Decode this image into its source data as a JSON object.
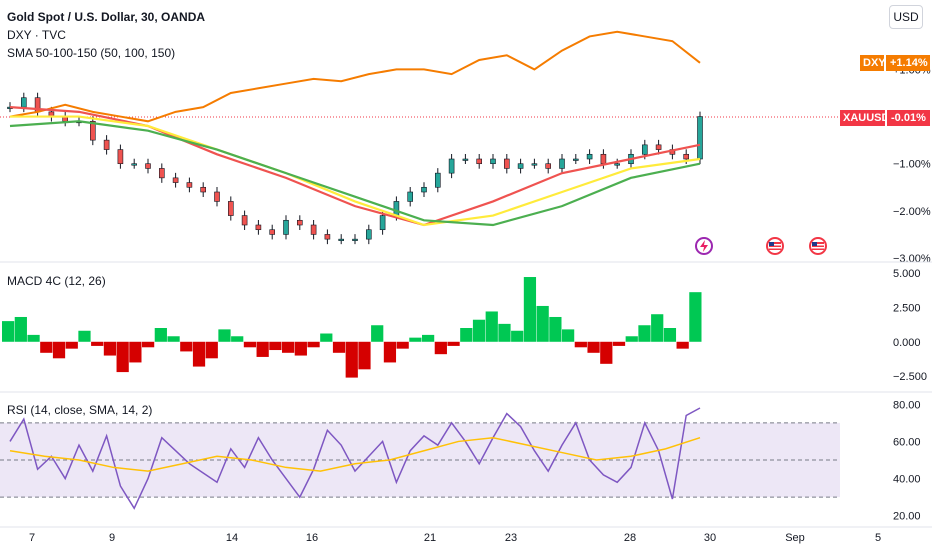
{
  "header": {
    "symbol_title": "Gold Spot / U.S. Dollar, 30, OANDA",
    "compare_label": "DXY · TVC",
    "sma_label": "SMA 50-100-150 (50, 100, 150)",
    "currency_button": "USD"
  },
  "badges": {
    "dxy_name": "DXY",
    "dxy_change": "+1.14%",
    "xau_name": "XAUUSD",
    "xau_change": "-0.01%"
  },
  "colors": {
    "xau_up": "#26a69a",
    "xau_down": "#ef5350",
    "dxy": "#f57c00",
    "sma50": "#ef5350",
    "sma100": "#ffeb3b",
    "sma150": "#4caf50",
    "macd_up": "#00c853",
    "macd_down": "#d50000",
    "rsi_line": "#7e57c2",
    "rsi_sma": "#ffc107",
    "rsi_band": "#ede7f6",
    "badge_orange": "#f57c00",
    "badge_red": "#f23645"
  },
  "event_icons": [
    "lightning-icon",
    "us-flag-icon",
    "us-flag-icon"
  ],
  "chart_data": [
    {
      "type": "line",
      "panel": "price",
      "title": "Gold Spot / U.S. Dollar, 30, OANDA",
      "y_axis_labels": [
        "+1.00%",
        "−1.00%",
        "−2.00%",
        "−3.00%"
      ],
      "ylim_percent": [
        -3.0,
        1.2
      ],
      "x_tick_labels": [
        "7",
        "9",
        "14",
        "16",
        "21",
        "23",
        "28",
        "30",
        "Sep",
        "5"
      ],
      "series": [
        {
          "name": "XAUUSD",
          "style": "candles",
          "x": [
            0,
            2,
            4,
            6,
            8,
            10,
            12,
            14,
            16,
            18,
            20,
            22,
            24,
            26,
            28,
            30,
            32,
            34,
            36,
            38,
            40,
            42,
            44,
            46,
            48,
            50,
            52,
            54,
            56,
            58,
            60,
            62,
            64,
            66,
            68,
            70,
            72,
            74,
            76,
            78,
            80,
            82,
            84,
            86,
            88,
            90,
            92,
            94,
            96,
            98,
            100
          ],
          "values": [
            0.2,
            0.4,
            0.1,
            0.0,
            -0.1,
            -0.1,
            -0.5,
            -0.7,
            -1.0,
            -1.0,
            -1.1,
            -1.3,
            -1.4,
            -1.5,
            -1.6,
            -1.8,
            -2.1,
            -2.3,
            -2.4,
            -2.5,
            -2.2,
            -2.3,
            -2.5,
            -2.6,
            -2.6,
            -2.6,
            -2.4,
            -2.1,
            -1.8,
            -1.6,
            -1.5,
            -1.2,
            -0.9,
            -0.9,
            -1.0,
            -0.9,
            -1.1,
            -1.0,
            -1.0,
            -1.1,
            -0.9,
            -0.9,
            -0.8,
            -1.0,
            -1.0,
            -0.8,
            -0.6,
            -0.7,
            -0.8,
            -0.9,
            0.0
          ]
        },
        {
          "name": "DXY",
          "x": [
            0,
            4,
            8,
            12,
            16,
            20,
            24,
            28,
            32,
            36,
            40,
            44,
            48,
            52,
            56,
            60,
            64,
            68,
            72,
            76,
            80,
            84,
            88,
            92,
            96,
            100
          ],
          "values": [
            0.0,
            0.1,
            0.25,
            0.1,
            0.0,
            -0.1,
            0.1,
            0.2,
            0.5,
            0.6,
            0.7,
            0.8,
            0.75,
            0.9,
            1.0,
            1.0,
            0.9,
            1.2,
            1.3,
            1.0,
            1.4,
            1.7,
            1.8,
            1.7,
            1.6,
            1.14
          ]
        },
        {
          "name": "SMA 50",
          "x": [
            0,
            10,
            20,
            30,
            40,
            50,
            60,
            70,
            80,
            90,
            100
          ],
          "values": [
            0.2,
            0.1,
            -0.2,
            -0.8,
            -1.3,
            -1.9,
            -2.3,
            -1.8,
            -1.2,
            -0.9,
            -0.6
          ]
        },
        {
          "name": "SMA 100",
          "x": [
            0,
            10,
            20,
            30,
            40,
            50,
            60,
            70,
            80,
            90,
            100
          ],
          "values": [
            0.0,
            0.0,
            -0.2,
            -0.7,
            -1.2,
            -1.8,
            -2.3,
            -2.1,
            -1.6,
            -1.1,
            -0.9
          ]
        },
        {
          "name": "SMA 150",
          "x": [
            0,
            10,
            20,
            30,
            40,
            50,
            60,
            70,
            80,
            90,
            100
          ],
          "values": [
            -0.2,
            -0.1,
            -0.3,
            -0.7,
            -1.2,
            -1.7,
            -2.2,
            -2.3,
            -1.9,
            -1.3,
            -1.0
          ]
        }
      ]
    },
    {
      "type": "bar",
      "panel": "macd",
      "title": "MACD 4C (12, 26)",
      "y_axis_labels": [
        "5.000",
        "2.500",
        "0.000",
        "−2.500"
      ],
      "ylim": [
        -3.5,
        5.5
      ],
      "values": [
        1.5,
        1.8,
        0.5,
        -0.8,
        -1.2,
        -0.5,
        0.8,
        -0.3,
        -1.0,
        -2.2,
        -1.5,
        -0.4,
        1.0,
        0.4,
        -0.7,
        -1.8,
        -1.2,
        0.9,
        0.4,
        -0.4,
        -1.1,
        -0.6,
        -0.8,
        -1.0,
        -0.4,
        0.6,
        -0.8,
        -2.6,
        -2.0,
        1.2,
        -1.5,
        -0.5,
        0.3,
        0.5,
        -0.9,
        -0.3,
        1.0,
        1.6,
        2.2,
        1.3,
        0.8,
        4.7,
        2.6,
        1.8,
        0.9,
        -0.4,
        -0.8,
        -1.6,
        -0.3,
        0.4,
        1.2,
        2.0,
        1.0,
        -0.5,
        3.6
      ]
    },
    {
      "type": "line",
      "panel": "rsi",
      "title": "RSI (14, close, SMA, 14, 2)",
      "y_axis_labels": [
        "80.00",
        "60.00",
        "40.00",
        "20.00"
      ],
      "ylim": [
        15,
        85
      ],
      "bands": [
        30,
        50,
        70
      ],
      "series": [
        {
          "name": "RSI",
          "x": [
            0,
            2,
            4,
            6,
            8,
            10,
            12,
            14,
            16,
            18,
            20,
            22,
            24,
            26,
            28,
            30,
            32,
            34,
            36,
            38,
            40,
            42,
            44,
            46,
            48,
            50,
            52,
            54,
            56,
            58,
            60,
            62,
            64,
            66,
            68,
            70,
            72,
            74,
            76,
            78,
            80,
            82,
            84,
            86,
            88,
            90,
            92,
            94,
            96,
            98,
            100
          ],
          "values": [
            60,
            72,
            45,
            52,
            40,
            58,
            44,
            63,
            36,
            24,
            40,
            62,
            55,
            48,
            43,
            38,
            56,
            46,
            62,
            50,
            40,
            30,
            45,
            66,
            58,
            44,
            52,
            60,
            38,
            55,
            63,
            58,
            70,
            60,
            48,
            62,
            75,
            68,
            55,
            44,
            58,
            70,
            50,
            42,
            38,
            46,
            70,
            55,
            29,
            74,
            78
          ]
        },
        {
          "name": "SMA",
          "x": [
            0,
            5,
            10,
            15,
            20,
            25,
            30,
            35,
            40,
            45,
            50,
            55,
            60,
            65,
            70,
            75,
            80,
            85,
            90,
            95,
            100
          ],
          "values": [
            55,
            52,
            50,
            46,
            44,
            48,
            52,
            50,
            46,
            44,
            48,
            50,
            55,
            60,
            62,
            58,
            54,
            50,
            52,
            56,
            62
          ]
        }
      ]
    }
  ]
}
